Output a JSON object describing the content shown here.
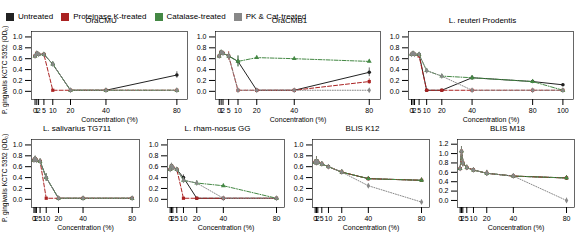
{
  "chart_data": [
    {
      "type": "line",
      "title": "OraCMU",
      "xlabel": "Concentration (%)",
      "ylabel": "P. gingivalis KCTC 5352 (OD₀)",
      "x": [
        0,
        1,
        2,
        5,
        10,
        20,
        40,
        80
      ],
      "xlim": [
        -2,
        86
      ],
      "xticks": [
        0,
        1,
        2,
        5,
        10,
        20,
        40,
        80
      ],
      "ylim": [
        -0.15,
        1.1
      ],
      "yticks": [
        {
          "value": 0,
          "label": "0.0"
        },
        0.2,
        0.4,
        0.6,
        0.8,
        {
          "value": 1.0,
          "label": "1.0"
        }
      ],
      "series": [
        {
          "name": "Untreated",
          "color": "#222222",
          "marker": "circle",
          "line_style": "solid",
          "values": [
            0.65,
            0.7,
            0.68,
            0.68,
            0.5,
            0.02,
            0.02,
            0.3
          ],
          "errors": [
            0.02,
            0.03,
            0.02,
            0.02,
            0.04,
            0.01,
            0.01,
            0.06
          ]
        },
        {
          "name": "Proteinase K-treated",
          "color": "#aa2222",
          "marker": "square",
          "line_style": "dashed",
          "values": [
            0.65,
            0.7,
            0.68,
            0.68,
            0.02,
            0.02,
            0.02,
            0.02
          ],
          "errors": [
            0.02,
            0.03,
            0.02,
            0.02,
            0.01,
            0.01,
            0.01,
            0.01
          ]
        },
        {
          "name": "Catalase-treated",
          "color": "#448844",
          "marker": "triangle",
          "line_style": "dashdot",
          "values": [
            0.65,
            0.7,
            0.68,
            0.68,
            0.5,
            0.02,
            0.02,
            0.02
          ],
          "errors": [
            0.02,
            0.03,
            0.02,
            0.02,
            0.04,
            0.01,
            0.01,
            0.01
          ]
        },
        {
          "name": "PK & Cat-treated",
          "color": "#888888",
          "marker": "diamond",
          "line_style": "dotted",
          "values": [
            0.65,
            0.7,
            0.68,
            0.68,
            0.5,
            0.02,
            0.02,
            0.02
          ],
          "errors": [
            0.02,
            0.03,
            0.02,
            0.02,
            0.04,
            0.01,
            0.01,
            0.01
          ]
        }
      ]
    },
    {
      "type": "line",
      "title": "OraCMB1",
      "xlabel": "Concentration (%)",
      "x": [
        0,
        1,
        2,
        5,
        10,
        20,
        40,
        80
      ],
      "xlim": [
        -2,
        86
      ],
      "xticks": [
        0,
        1,
        2,
        5,
        10,
        20,
        40,
        80
      ],
      "ylim": [
        -0.15,
        1.1
      ],
      "yticks": [
        {
          "value": 0,
          "label": "0.0"
        },
        0.2,
        0.4,
        0.6,
        0.8,
        {
          "value": 1.0,
          "label": "1.0"
        }
      ],
      "series": [
        {
          "name": "Untreated",
          "color": "#222222",
          "marker": "circle",
          "line_style": "solid",
          "values": [
            0.65,
            0.72,
            0.7,
            0.65,
            0.55,
            0.02,
            0.02,
            0.35
          ],
          "errors": [
            0.02,
            0.03,
            0.03,
            0.05,
            0.1,
            0.01,
            0.01,
            0.08
          ]
        },
        {
          "name": "Proteinase K-treated",
          "color": "#aa2222",
          "marker": "square",
          "line_style": "dashed",
          "values": [
            0.65,
            0.72,
            0.7,
            0.65,
            0.02,
            0.02,
            0.02,
            0.18
          ],
          "errors": [
            0.02,
            0.03,
            0.03,
            0.08,
            0.01,
            0.01,
            0.01,
            0.05
          ]
        },
        {
          "name": "Catalase-treated",
          "color": "#448844",
          "marker": "triangle",
          "line_style": "dashdot",
          "values": [
            0.65,
            0.72,
            0.7,
            0.65,
            0.55,
            0.62,
            0.6,
            0.55
          ],
          "errors": [
            0.02,
            0.03,
            0.03,
            0.05,
            0.1,
            0.03,
            0.03,
            0.03
          ]
        },
        {
          "name": "PK & Cat-treated",
          "color": "#888888",
          "marker": "diamond",
          "line_style": "dotted",
          "values": [
            0.65,
            0.72,
            0.7,
            0.65,
            0.02,
            0.02,
            0.02,
            0.02
          ],
          "errors": [
            0.02,
            0.03,
            0.03,
            0.05,
            0.01,
            0.01,
            0.01,
            0.01
          ]
        }
      ]
    },
    {
      "type": "line",
      "title": "L. reuteri Prodentis",
      "xlabel": "Concentration (%)",
      "x": [
        0,
        1,
        2,
        5,
        10,
        20,
        40,
        80,
        100
      ],
      "xlim": [
        -2,
        107
      ],
      "xticks": [
        0,
        1,
        2,
        5,
        10,
        20,
        40,
        80,
        100
      ],
      "ylim": [
        -0.15,
        1.1
      ],
      "yticks": [
        {
          "value": 0,
          "label": "0.0"
        },
        0.2,
        0.4,
        0.6,
        0.8,
        {
          "value": 1.0,
          "label": "1.0"
        }
      ],
      "series": [
        {
          "name": "Untreated",
          "color": "#222222",
          "marker": "circle",
          "line_style": "solid",
          "values": [
            0.68,
            0.7,
            0.68,
            0.68,
            0.02,
            0.02,
            0.25,
            0.18,
            0.12
          ],
          "errors": [
            0.02,
            0.03,
            0.02,
            0.02,
            0.01,
            0.01,
            0.04,
            0.03,
            0.02
          ]
        },
        {
          "name": "Proteinase K-treated",
          "color": "#aa2222",
          "marker": "square",
          "line_style": "dashed",
          "values": [
            0.68,
            0.7,
            0.68,
            0.65,
            0.02,
            0.02,
            0.02,
            0.02,
            0.02
          ],
          "errors": [
            0.02,
            0.03,
            0.02,
            0.03,
            0.01,
            0.01,
            0.01,
            0.01,
            0.01
          ]
        },
        {
          "name": "Catalase-treated",
          "color": "#448844",
          "marker": "triangle",
          "line_style": "dashdot",
          "values": [
            0.68,
            0.7,
            0.68,
            0.68,
            0.38,
            0.28,
            0.25,
            0.18,
            0.02
          ],
          "errors": [
            0.02,
            0.03,
            0.02,
            0.02,
            0.04,
            0.03,
            0.04,
            0.03,
            0.01
          ]
        },
        {
          "name": "PK & Cat-treated",
          "color": "#888888",
          "marker": "diamond",
          "line_style": "dotted",
          "values": [
            0.68,
            0.7,
            0.68,
            0.68,
            0.38,
            0.28,
            0.02,
            0.02,
            0.02
          ],
          "errors": [
            0.02,
            0.03,
            0.02,
            0.02,
            0.04,
            0.03,
            0.01,
            0.01,
            0.01
          ]
        }
      ]
    },
    {
      "type": "line",
      "title": "L. salivarius TG711",
      "xlabel": "Concentration (%)",
      "ylabel": "P. gingivalis KCTC 5352 (OD₀)",
      "x": [
        0,
        1,
        2,
        5,
        10,
        20,
        40,
        80
      ],
      "xlim": [
        -2,
        86
      ],
      "xticks": [
        0,
        1,
        2,
        5,
        10,
        20,
        40,
        80
      ],
      "ylim": [
        -0.15,
        1.1
      ],
      "yticks": [
        {
          "value": 0,
          "label": "0.0"
        },
        0.2,
        0.4,
        0.6,
        0.8,
        {
          "value": 1.0,
          "label": "1.0"
        }
      ],
      "series": [
        {
          "name": "Untreated",
          "color": "#222222",
          "marker": "circle",
          "line_style": "solid",
          "values": [
            0.72,
            0.75,
            0.72,
            0.7,
            0.4,
            0.02,
            0.02,
            0.02
          ],
          "errors": [
            0.03,
            0.04,
            0.03,
            0.04,
            0.07,
            0.01,
            0.01,
            0.01
          ]
        },
        {
          "name": "Proteinase K-treated",
          "color": "#aa2222",
          "marker": "square",
          "line_style": "dashed",
          "values": [
            0.72,
            0.75,
            0.72,
            0.7,
            0.02,
            0.02,
            0.02,
            0.02
          ],
          "errors": [
            0.03,
            0.04,
            0.03,
            0.04,
            0.01,
            0.01,
            0.01,
            0.01
          ]
        },
        {
          "name": "Catalase-treated",
          "color": "#448844",
          "marker": "triangle",
          "line_style": "dashdot",
          "values": [
            0.72,
            0.75,
            0.72,
            0.7,
            0.4,
            0.02,
            0.02,
            0.02
          ],
          "errors": [
            0.03,
            0.04,
            0.03,
            0.04,
            0.07,
            0.01,
            0.01,
            0.01
          ]
        },
        {
          "name": "PK & Cat-treated",
          "color": "#888888",
          "marker": "diamond",
          "line_style": "dotted",
          "values": [
            0.72,
            0.75,
            0.72,
            0.7,
            0.4,
            0.02,
            0.02,
            0.02
          ],
          "errors": [
            0.03,
            0.04,
            0.03,
            0.04,
            0.07,
            0.01,
            0.01,
            0.01
          ]
        }
      ]
    },
    {
      "type": "line",
      "title": "L. rham-nosus GG",
      "xlabel": "Concentration (%)",
      "x": [
        0,
        1,
        2,
        5,
        10,
        20,
        40,
        80
      ],
      "xlim": [
        -2,
        86
      ],
      "xticks": [
        0,
        1,
        2,
        5,
        10,
        20,
        40,
        80
      ],
      "ylim": [
        -0.15,
        1.1
      ],
      "yticks": [
        {
          "value": 0,
          "label": "0.0"
        },
        0.2,
        0.4,
        0.6,
        0.8,
        {
          "value": 1.0,
          "label": "1.0"
        }
      ],
      "series": [
        {
          "name": "Untreated",
          "color": "#222222",
          "marker": "circle",
          "line_style": "solid",
          "values": [
            0.55,
            0.62,
            0.58,
            0.55,
            0.4,
            0.02,
            0.02,
            0.02
          ],
          "errors": [
            0.03,
            0.04,
            0.03,
            0.03,
            0.05,
            0.01,
            0.01,
            0.01
          ]
        },
        {
          "name": "Proteinase K-treated",
          "color": "#aa2222",
          "marker": "square",
          "line_style": "dashed",
          "values": [
            0.55,
            0.62,
            0.58,
            0.55,
            0.02,
            0.02,
            0.02,
            0.02
          ],
          "errors": [
            0.03,
            0.04,
            0.03,
            0.03,
            0.01,
            0.01,
            0.01,
            0.01
          ]
        },
        {
          "name": "Catalase-treated",
          "color": "#448844",
          "marker": "triangle",
          "line_style": "dashdot",
          "values": [
            0.55,
            0.62,
            0.58,
            0.55,
            0.35,
            0.3,
            0.25,
            0.02
          ],
          "errors": [
            0.03,
            0.04,
            0.03,
            0.03,
            0.05,
            0.04,
            0.03,
            0.01
          ]
        },
        {
          "name": "PK & Cat-treated",
          "color": "#888888",
          "marker": "diamond",
          "line_style": "dotted",
          "values": [
            0.55,
            0.62,
            0.58,
            0.55,
            0.35,
            0.3,
            0.02,
            0.02
          ],
          "errors": [
            0.03,
            0.04,
            0.03,
            0.03,
            0.05,
            0.04,
            0.01,
            0.01
          ]
        }
      ]
    },
    {
      "type": "line",
      "title": "BLIS K12",
      "xlabel": "Concentration (%)",
      "x": [
        0,
        1,
        2,
        5,
        10,
        20,
        40,
        80
      ],
      "xlim": [
        -2,
        86
      ],
      "xticks": [
        0,
        1,
        2,
        5,
        10,
        20,
        40,
        80
      ],
      "ylim": [
        -0.15,
        1.1
      ],
      "yticks": [
        {
          "value": 0,
          "label": "0.0"
        },
        0.2,
        0.4,
        0.6,
        0.8,
        {
          "value": 1.0,
          "label": "1.0"
        }
      ],
      "series": [
        {
          "name": "Untreated",
          "color": "#222222",
          "marker": "circle",
          "line_style": "solid",
          "values": [
            0.68,
            0.7,
            0.68,
            0.65,
            0.6,
            0.5,
            0.38,
            0.35
          ],
          "errors": [
            0.05,
            0.08,
            0.05,
            0.04,
            0.04,
            0.04,
            0.03,
            0.04
          ]
        },
        {
          "name": "Proteinase K-treated",
          "color": "#aa2222",
          "marker": "square",
          "line_style": "dashed",
          "values": [
            0.68,
            0.7,
            0.68,
            0.65,
            0.6,
            0.5,
            0.38,
            0.35
          ],
          "errors": [
            0.05,
            0.08,
            0.05,
            0.04,
            0.04,
            0.04,
            0.03,
            0.04
          ]
        },
        {
          "name": "Catalase-treated",
          "color": "#448844",
          "marker": "triangle",
          "line_style": "dashdot",
          "values": [
            0.68,
            0.7,
            0.68,
            0.65,
            0.6,
            0.5,
            0.38,
            0.35
          ],
          "errors": [
            0.05,
            0.08,
            0.05,
            0.04,
            0.04,
            0.04,
            0.03,
            0.04
          ]
        },
        {
          "name": "PK & Cat-treated",
          "color": "#888888",
          "marker": "diamond",
          "line_style": "dotted",
          "values": [
            0.68,
            0.7,
            0.68,
            0.65,
            0.6,
            0.5,
            0.25,
            -0.05
          ],
          "errors": [
            0.05,
            0.08,
            0.05,
            0.04,
            0.04,
            0.04,
            0.03,
            0.04
          ]
        }
      ]
    },
    {
      "type": "line",
      "title": "BLIS M18",
      "xlabel": "Concentration (%)",
      "x": [
        0,
        1,
        2,
        5,
        10,
        20,
        40,
        80
      ],
      "xlim": [
        -2,
        86
      ],
      "xticks": [
        0,
        1,
        2,
        5,
        10,
        20,
        40,
        80
      ],
      "ylim": [
        -0.15,
        1.3
      ],
      "yticks": [
        {
          "value": 0,
          "label": "0.0"
        },
        0.2,
        0.4,
        0.6,
        0.8,
        {
          "value": 1.0,
          "label": "1.0"
        },
        1.2
      ],
      "series": [
        {
          "name": "Untreated",
          "color": "#222222",
          "marker": "circle",
          "line_style": "solid",
          "values": [
            0.68,
            1.05,
            0.8,
            0.7,
            0.65,
            0.58,
            0.52,
            0.48
          ],
          "errors": [
            0.04,
            0.1,
            0.08,
            0.05,
            0.04,
            0.06,
            0.04,
            0.05
          ]
        },
        {
          "name": "Proteinase K-treated",
          "color": "#aa2222",
          "marker": "square",
          "line_style": "dashed",
          "values": [
            0.68,
            1.05,
            0.8,
            0.7,
            0.65,
            0.58,
            0.52,
            0.48
          ],
          "errors": [
            0.04,
            0.1,
            0.08,
            0.05,
            0.04,
            0.06,
            0.04,
            0.05
          ]
        },
        {
          "name": "Catalase-treated",
          "color": "#448844",
          "marker": "triangle",
          "line_style": "dashdot",
          "values": [
            0.68,
            1.05,
            0.8,
            0.7,
            0.65,
            0.58,
            0.52,
            0.48
          ],
          "errors": [
            0.04,
            0.1,
            0.08,
            0.05,
            0.04,
            0.06,
            0.04,
            0.05
          ]
        },
        {
          "name": "PK & Cat-treated",
          "color": "#888888",
          "marker": "diamond",
          "line_style": "dotted",
          "values": [
            0.68,
            1.05,
            0.8,
            0.7,
            0.65,
            0.58,
            0.52,
            0.0
          ],
          "errors": [
            0.04,
            0.1,
            0.08,
            0.05,
            0.04,
            0.06,
            0.04,
            0.05
          ]
        }
      ]
    }
  ]
}
